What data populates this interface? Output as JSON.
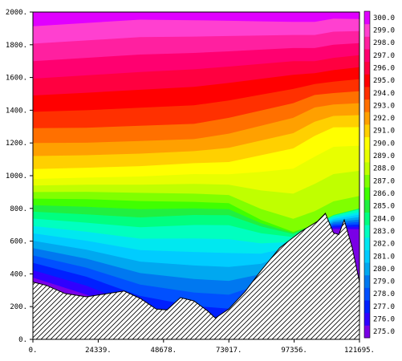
{
  "chart_data": {
    "type": "heatmap",
    "subtype": "filled-contour cross-section",
    "title": "",
    "xlabel": "",
    "ylabel": "",
    "colorbar_label": "",
    "xlim": [
      0,
      121695
    ],
    "ylim": [
      0,
      2000
    ],
    "x_ticks": [
      0,
      24339,
      48678,
      73017,
      97356,
      121695
    ],
    "x_tick_labels": [
      "0.",
      "24339.",
      "48678.",
      "73017.",
      "97356.",
      "121695."
    ],
    "y_ticks": [
      0,
      200,
      400,
      600,
      800,
      1000,
      1200,
      1400,
      1600,
      1800,
      2000
    ],
    "y_tick_labels": [
      "0.",
      "200.",
      "400.",
      "600.",
      "800.",
      "1000.",
      "1200.",
      "1400.",
      "1600.",
      "1800.",
      "2000."
    ],
    "colorbar": {
      "levels": [
        275.0,
        276.0,
        277.0,
        278.0,
        279.0,
        280.0,
        281.0,
        282.0,
        283.0,
        284.0,
        285.0,
        286.0,
        287.0,
        288.0,
        289.0,
        290.0,
        291.0,
        292.0,
        293.0,
        294.0,
        295.0,
        296.0,
        297.0,
        298.0,
        299.0,
        300.0
      ],
      "labels": [
        "275.0",
        "276.0",
        "277.0",
        "278.0",
        "279.0",
        "280.0",
        "281.0",
        "282.0",
        "283.0",
        "284.0",
        "285.0",
        "286.0",
        "287.0",
        "288.0",
        "289.0",
        "290.0",
        "291.0",
        "292.0",
        "293.0",
        "294.0",
        "295.0",
        "296.0",
        "297.0",
        "298.0",
        "299.0",
        "300.0"
      ],
      "colors": [
        "#7a00e6",
        "#3000ff",
        "#0020ff",
        "#0050ff",
        "#0078f0",
        "#00a8f0",
        "#00ccff",
        "#00e8f0",
        "#00ffc0",
        "#00ff80",
        "#20f040",
        "#40ff00",
        "#80ff00",
        "#c0ff00",
        "#e8ff00",
        "#ffff00",
        "#ffd000",
        "#ffa000",
        "#ff7000",
        "#ff3000",
        "#ff0000",
        "#ff0040",
        "#ff0070",
        "#ff20a0",
        "#ff40d0",
        "#e000ff"
      ]
    },
    "terrain": {
      "x": [
        0,
        5000,
        12000,
        20000,
        28000,
        34000,
        40000,
        46000,
        50000,
        55000,
        60000,
        65000,
        68000,
        73000,
        79000,
        85000,
        92000,
        100000,
        106000,
        109000,
        112000,
        114000,
        116000,
        119000,
        121695
      ],
      "elevation": [
        350,
        330,
        280,
        260,
        280,
        295,
        250,
        185,
        180,
        255,
        235,
        175,
        130,
        185,
        290,
        420,
        560,
        660,
        720,
        770,
        650,
        640,
        730,
        560,
        350
      ]
    },
    "isotherm_heights": {
      "x": [
        0,
        20000,
        40000,
        60000,
        73000,
        85000,
        97000,
        105000,
        112000,
        121695
      ],
      "280.0": [
        580,
        520,
        440,
        410,
        400,
        430,
        520,
        660,
        720,
        740
      ],
      "284.0": [
        760,
        740,
        720,
        740,
        740,
        680,
        640,
        700,
        760,
        800
      ],
      "287.0": [
        880,
        880,
        870,
        860,
        850,
        740,
        660,
        700,
        760,
        800
      ],
      "290.0": [
        1000,
        1010,
        1020,
        1040,
        1040,
        1080,
        1120,
        1200,
        1260,
        1260
      ],
      "293.0": [
        1240,
        1240,
        1250,
        1260,
        1300,
        1350,
        1400,
        1460,
        1470,
        1480
      ],
      "296.0": [
        1540,
        1560,
        1580,
        1600,
        1620,
        1640,
        1660,
        1660,
        1680,
        1700
      ],
      "299.0": [
        1860,
        1880,
        1900,
        1900,
        1900,
        1900,
        1900,
        1900,
        1920,
        1920
      ]
    }
  }
}
